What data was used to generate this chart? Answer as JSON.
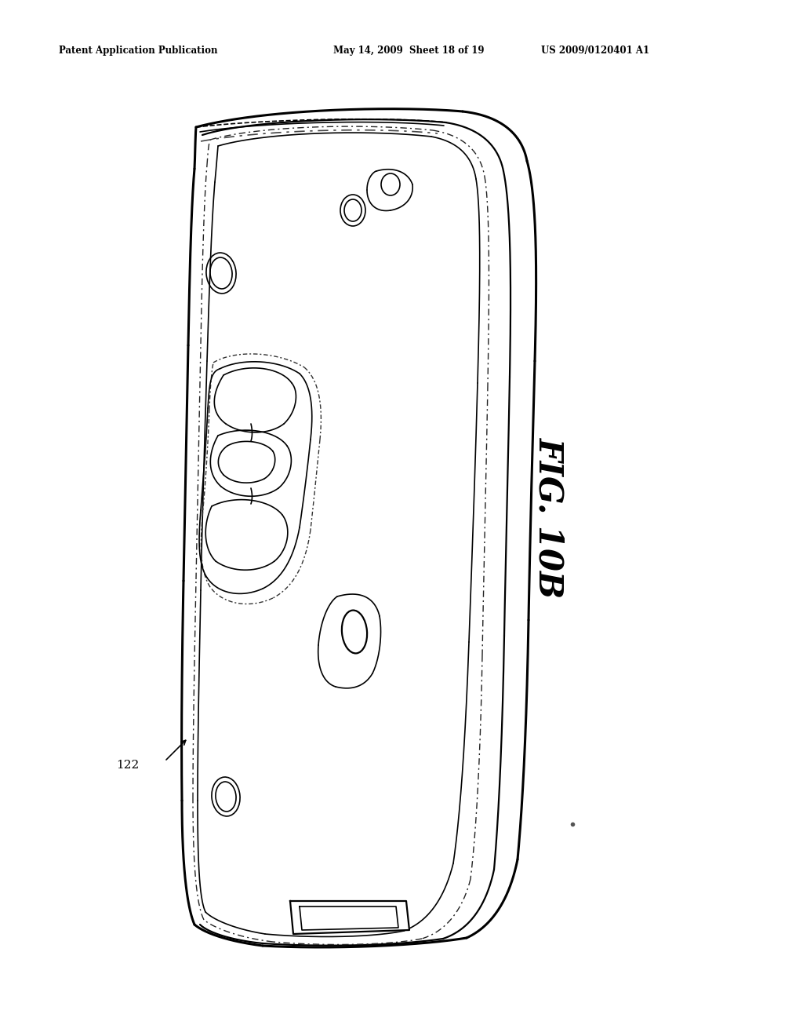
{
  "title_left": "Patent Application Publication",
  "title_center": "May 14, 2009  Sheet 18 of 19",
  "title_right": "US 2009/0120401 A1",
  "fig_label": "FIG. 10B",
  "part_label": "122",
  "background_color": "#ffffff",
  "line_color": "#000000"
}
